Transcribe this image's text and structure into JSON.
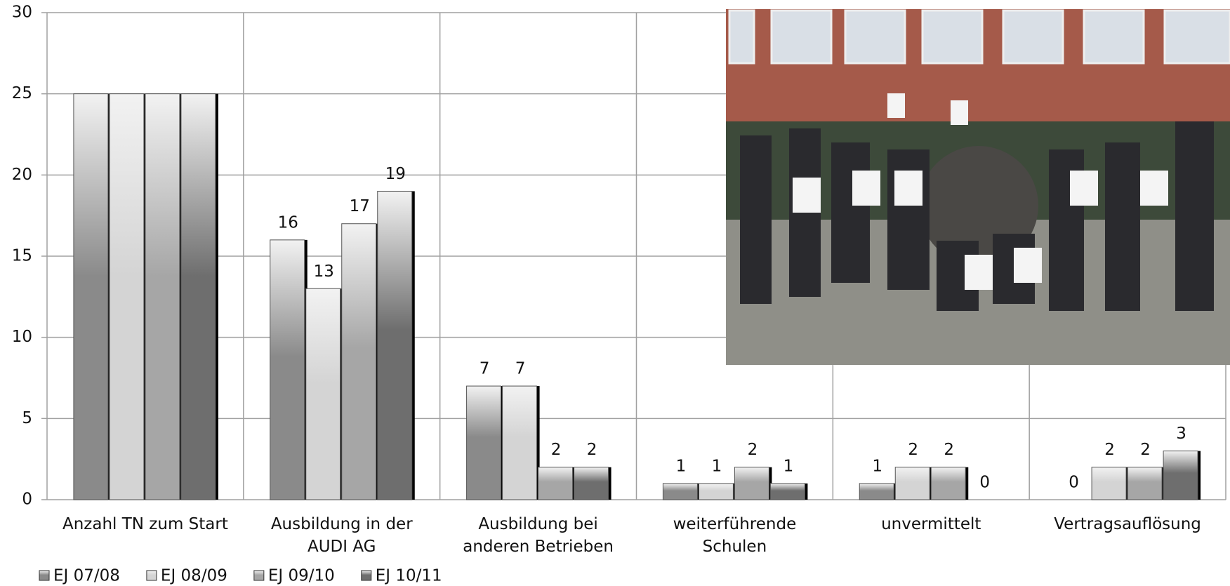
{
  "chart_data": {
    "type": "bar",
    "categories": [
      "Anzahl TN zum Start",
      "Ausbildung in der AUDI AG",
      "Ausbildung bei anderen Betrieben",
      "weiterführende Schulen",
      "unvermittelt",
      "Vertragsauflösung"
    ],
    "series": [
      {
        "name": "EJ 07/08",
        "color": "#8a8a8a",
        "values": [
          25,
          16,
          7,
          1,
          1,
          0
        ],
        "value_labels": [
          null,
          "16",
          "7",
          "1",
          "1",
          "0"
        ]
      },
      {
        "name": "EJ 08/09",
        "color": "#d4d4d4",
        "values": [
          25,
          13,
          7,
          1,
          2,
          2
        ],
        "value_labels": [
          null,
          "13",
          "7",
          "1",
          "2",
          "2"
        ]
      },
      {
        "name": "EJ 09/10",
        "color": "#a6a6a6",
        "values": [
          25,
          17,
          2,
          2,
          2,
          2
        ],
        "value_labels": [
          null,
          "17",
          "2",
          "2",
          "2",
          "2"
        ]
      },
      {
        "name": "EJ 10/11",
        "color": "#6e6e6e",
        "values": [
          25,
          19,
          2,
          1,
          0,
          3
        ],
        "value_labels": [
          null,
          "19",
          "2",
          "1",
          "0",
          "3"
        ]
      }
    ],
    "ylim": [
      0,
      30
    ],
    "yticks": [
      0,
      5,
      10,
      15,
      20,
      25,
      30
    ],
    "grid": true,
    "legend": "bottom-left"
  }
}
